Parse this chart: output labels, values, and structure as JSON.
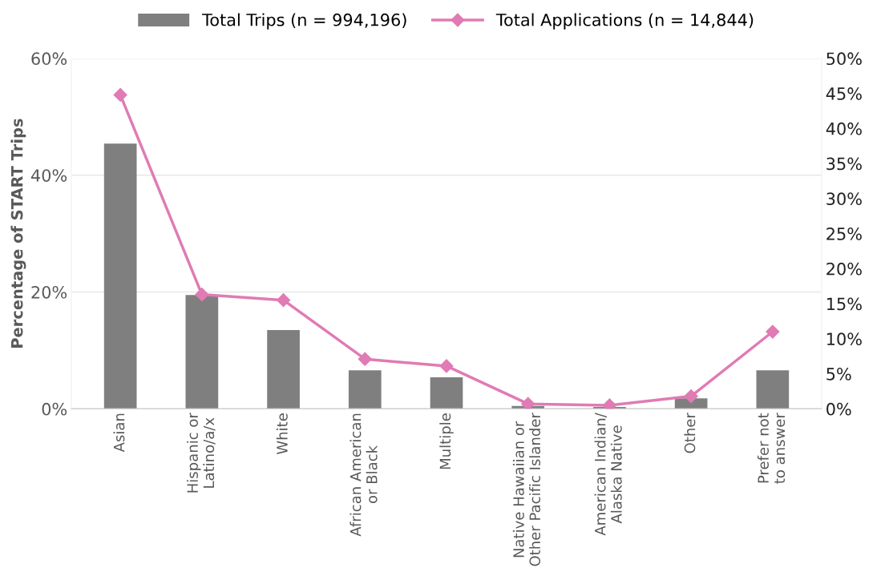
{
  "chart_data": {
    "type": "bar",
    "ylabel": "Percentage of START Trips",
    "categories": [
      "Asian",
      "Hispanic or\nLatino/a/x",
      "White",
      "African American\nor Black",
      "Multiple",
      "Native Hawaiian or\nOther Pacific Islander",
      "American Indian/\nAlaska Native",
      "Other",
      "Prefer not\nto answer"
    ],
    "series": [
      {
        "name": "Total Trips (n = 994,196)",
        "color": "#7f7f7f",
        "values": [
          45.4,
          19.5,
          13.5,
          6.6,
          5.4,
          0.5,
          0.3,
          1.8,
          6.6
        ]
      },
      {
        "name": "Total Applications (n = 14,844)",
        "type": "line",
        "axis": "y2",
        "color": "#e07bb4",
        "marker": "diamond",
        "values": [
          44.8,
          16.3,
          15.5,
          7.1,
          6.1,
          0.7,
          0.5,
          1.8,
          11.0
        ]
      }
    ],
    "ylim": [
      0,
      60
    ],
    "yticks": [
      {
        "value": 0,
        "label": "0%"
      },
      {
        "value": 20,
        "label": "20%"
      },
      {
        "value": 40,
        "label": "40%"
      },
      {
        "value": 60,
        "label": "60%"
      }
    ],
    "y2lim": [
      0,
      50
    ],
    "y2ticks": [
      {
        "value": 0,
        "label": "0%"
      },
      {
        "value": 5,
        "label": "5%"
      },
      {
        "value": 10,
        "label": "10%"
      },
      {
        "value": 15,
        "label": "15%"
      },
      {
        "value": 20,
        "label": "20%"
      },
      {
        "value": 25,
        "label": "25%"
      },
      {
        "value": 30,
        "label": "30%"
      },
      {
        "value": 35,
        "label": "35%"
      },
      {
        "value": 40,
        "label": "40%"
      },
      {
        "value": 45,
        "label": "45%"
      },
      {
        "value": 50,
        "label": "50%"
      }
    ],
    "grid": "y",
    "legend": "top"
  }
}
